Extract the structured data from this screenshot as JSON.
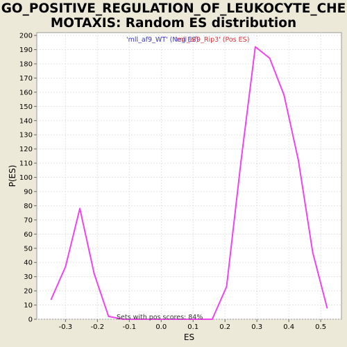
{
  "title_line1": "GO_POSITIVE_REGULATION_OF_LEUKOCYTE_CHE",
  "title_line2": "MOTAXIS: Random ES distribution",
  "chart_data": {
    "type": "line",
    "xlabel": "ES",
    "ylabel": "P(ES)",
    "xlim": [
      -0.39,
      0.565
    ],
    "ylim": [
      0,
      202
    ],
    "x_ticks": [
      -0.3,
      -0.2,
      -0.1,
      0.0,
      0.1,
      0.2,
      0.3,
      0.4,
      0.5
    ],
    "x_tick_labels": [
      "-0.3",
      "-0.2",
      "-0.1",
      "0.0",
      "0.1",
      "0.2",
      "0.3",
      "0.4",
      "0.5"
    ],
    "y_ticks": [
      0,
      10,
      20,
      30,
      40,
      50,
      60,
      70,
      80,
      90,
      100,
      110,
      120,
      130,
      140,
      150,
      160,
      170,
      180,
      190,
      200
    ],
    "grid": true,
    "legend": [
      {
        "label": "'mll_af9_WT' (Neg ES)",
        "color": "#3333cc"
      },
      {
        "label": "'mll_af9_Rip3' (Pos ES)",
        "color": "#dd3333"
      }
    ],
    "annotation": "Sets with pos scores: 84%",
    "series": [
      {
        "color": "#ee44ee",
        "x": [
          -0.345,
          -0.3,
          -0.255,
          -0.21,
          -0.165,
          -0.12,
          -0.075,
          -0.03,
          0.015,
          0.06,
          0.105,
          0.16,
          0.205,
          0.25,
          0.295,
          0.34,
          0.385,
          0.43,
          0.475,
          0.52
        ],
        "y": [
          14,
          37,
          78,
          32,
          2,
          0,
          0,
          0,
          0,
          0,
          0,
          0,
          23,
          111,
          192,
          184,
          158,
          112,
          47,
          8
        ]
      }
    ]
  }
}
